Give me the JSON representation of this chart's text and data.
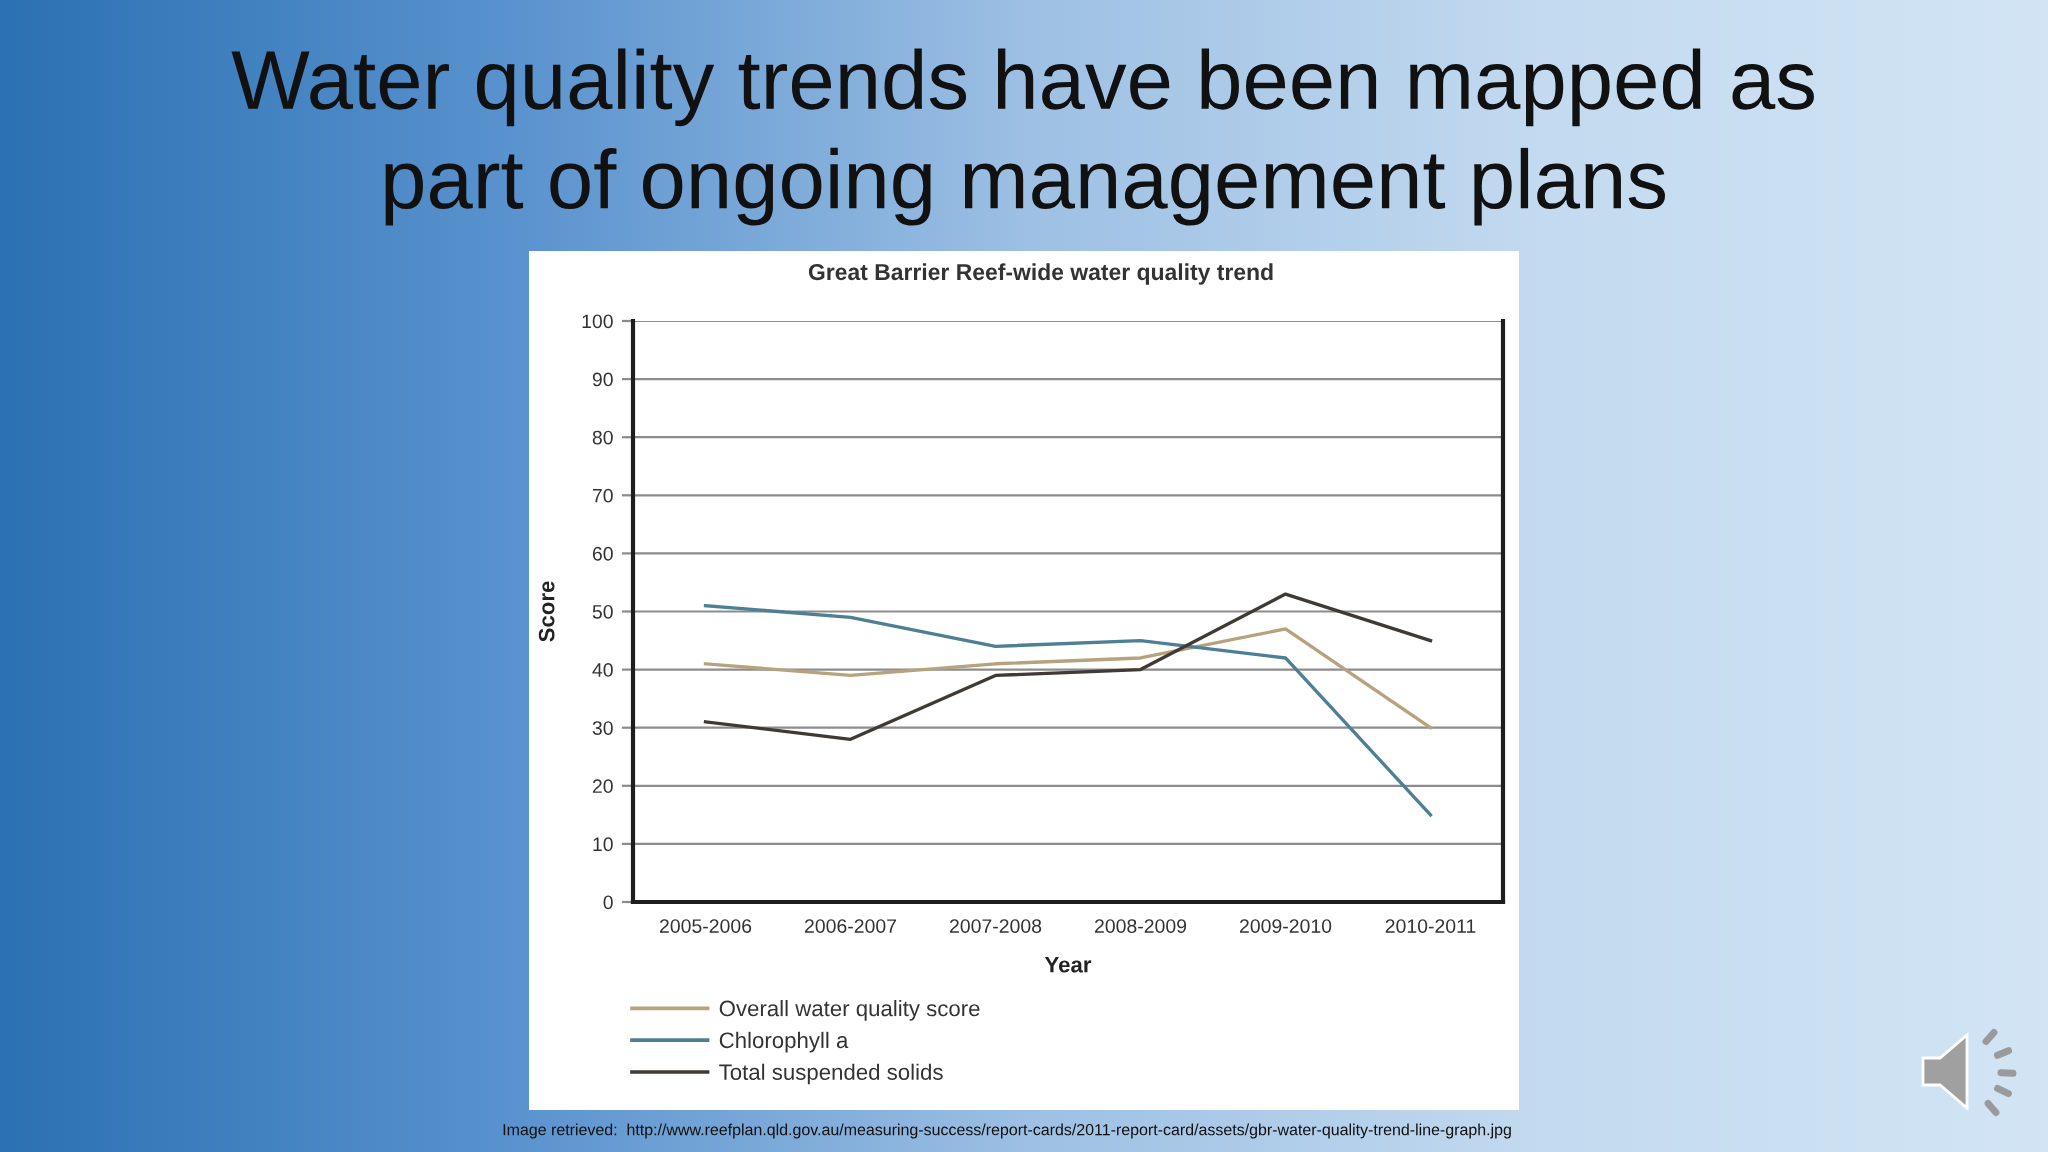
{
  "chart_data": {
    "type": "line",
    "title": "Water quality trends have been mapped as\npart of ongoing management plans",
    "subtitle": "Great Barrier Reef-wide water quality trend",
    "xlabel": "Year",
    "ylabel": "Score",
    "categories": [
      "2005-2006",
      "2006-2007",
      "2007-2008",
      "2008-2009",
      "2009-2010",
      "2010-2011"
    ],
    "series": [
      {
        "name": "Overall water quality score",
        "color": "#b7a27e",
        "values": [
          41,
          39,
          41,
          42,
          47,
          30
        ]
      },
      {
        "name": "Chlorophyll a",
        "color": "#4e7f94",
        "values": [
          51,
          49,
          44,
          45,
          42,
          15
        ]
      },
      {
        "name": "Total suspended solids",
        "color": "#403a35",
        "values": [
          31,
          28,
          39,
          40,
          53,
          45
        ]
      }
    ],
    "ylim": [
      0,
      100
    ],
    "yticks": [
      0,
      10,
      20,
      30,
      40,
      50,
      60,
      70,
      80,
      90,
      100
    ],
    "grid": "y",
    "legend": "bottom",
    "line_style": "solid",
    "annotations": [
      "Image retrieved:  http://www.reefplan.qld.gov.au/measuring-success/report-cards/2011-report-card/assets/gbr-water-quality-trend-line-graph.jpg"
    ]
  }
}
